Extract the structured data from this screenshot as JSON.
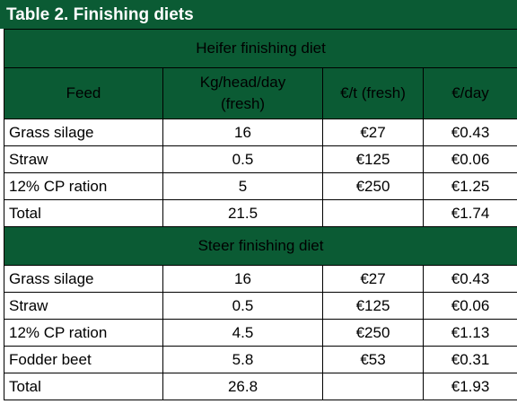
{
  "title": "Table 2. Finishing diets",
  "columns": {
    "feed": "Feed",
    "kg_line1": "Kg/head/day",
    "kg_line2": "(fresh)",
    "price": "€/t (fresh)",
    "cost": "€/day"
  },
  "sections": [
    {
      "title": "Heifer finishing diet",
      "rows": [
        {
          "feed": "Grass silage",
          "kg": "16",
          "price": "€27",
          "cost": "€0.43"
        },
        {
          "feed": "Straw",
          "kg": "0.5",
          "price": "€125",
          "cost": "€0.06"
        },
        {
          "feed": "12% CP ration",
          "kg": "5",
          "price": "€250",
          "cost": "€1.25"
        },
        {
          "feed": "Total",
          "kg": "21.5",
          "price": "",
          "cost": "€1.74"
        }
      ]
    },
    {
      "title": "Steer finishing diet",
      "rows": [
        {
          "feed": "Grass silage",
          "kg": "16",
          "price": "€27",
          "cost": "€0.43"
        },
        {
          "feed": "Straw",
          "kg": "0.5",
          "price": "€125",
          "cost": "€0.06"
        },
        {
          "feed": "12% CP ration",
          "kg": "4.5",
          "price": "€250",
          "cost": "€1.13"
        },
        {
          "feed": "Fodder beet",
          "kg": "5.8",
          "price": "€53",
          "cost": "€0.31"
        },
        {
          "feed": "Total",
          "kg": "26.8",
          "price": "",
          "cost": "€1.93"
        }
      ]
    }
  ]
}
